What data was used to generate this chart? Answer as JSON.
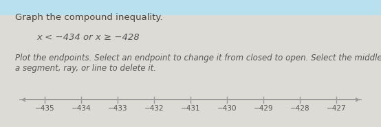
{
  "title_line1": "Graph the compound inequality.",
  "inequality_text": "x < −434 or x ≥ −428",
  "instruction_text": "Plot the endpoints. Select an endpoint to change it from closed to open. Select the middle of\na segment, ray, or line to delete it.",
  "x_min": -435.7,
  "x_max": -426.3,
  "tick_positions": [
    -435,
    -434,
    -433,
    -432,
    -431,
    -430,
    -429,
    -428,
    -427
  ],
  "tick_labels": [
    "−435",
    "−434",
    "−433",
    "−432",
    "−431",
    "−430",
    "−429",
    "−428",
    "−427"
  ],
  "line_color": "#999999",
  "bg_top_color": "#b8e0ee",
  "bg_main_color": "#dcdbd6",
  "title_color": "#444444",
  "inequality_color": "#555555",
  "instruction_color": "#555555",
  "title_fontsize": 9.5,
  "inequality_fontsize": 9.5,
  "instruction_fontsize": 8.5,
  "tick_fontsize": 7.5
}
